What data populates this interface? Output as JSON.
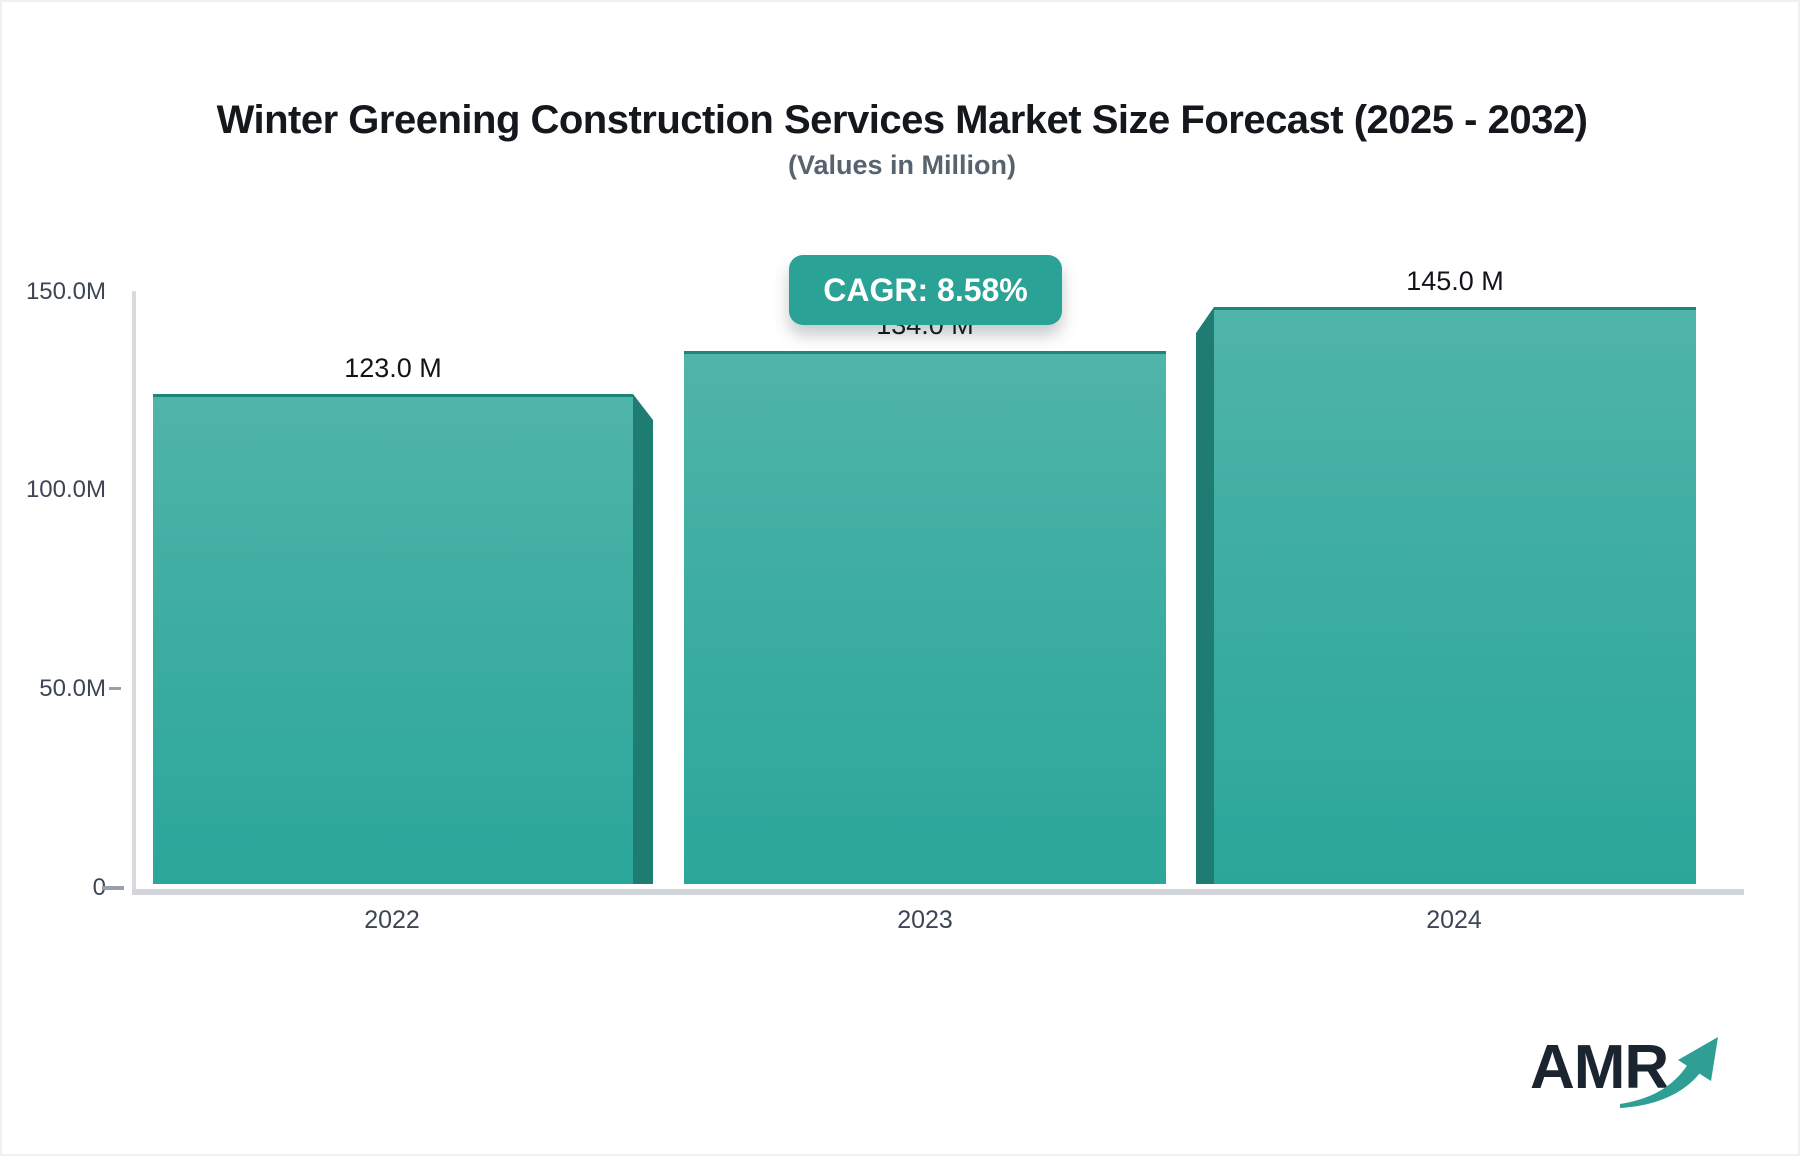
{
  "header": {
    "title": "Winter Greening Construction Services Market Size Forecast (2025 - 2032)",
    "subtitle": "(Values in Million)"
  },
  "badge": {
    "label": "CAGR: 8.58%"
  },
  "chart_data": {
    "type": "bar",
    "title": "Winter Greening Construction Services Market Size Forecast (2025 - 2032)",
    "subtitle": "(Values in Million)",
    "unit": "Million",
    "cagr_pct": 8.58,
    "categories": [
      "2022",
      "2023",
      "2024"
    ],
    "values": [
      123.0,
      134.0,
      145.0
    ],
    "value_labels": [
      "123.0 M",
      "134.0 M",
      "145.0 M"
    ],
    "xlabel": "",
    "ylabel": "",
    "ylim": [
      0,
      150
    ],
    "y_ticks": [
      "150.0M",
      "100.0M",
      "50.0M",
      "0"
    ],
    "grid": false,
    "legend": false,
    "colors": {
      "bar_top": "#50b4aa",
      "bar_bottom": "#2ba79a",
      "bar_side_shadow": "#1f7c72",
      "bar_top_edge": "#1d867c",
      "badge_bg": "#2aa296",
      "axis": "#d2d5da",
      "label_text": "#3d4654"
    }
  },
  "logo": {
    "text": "AMR",
    "accent": "#2f9e94",
    "text_color": "#1a2530"
  }
}
